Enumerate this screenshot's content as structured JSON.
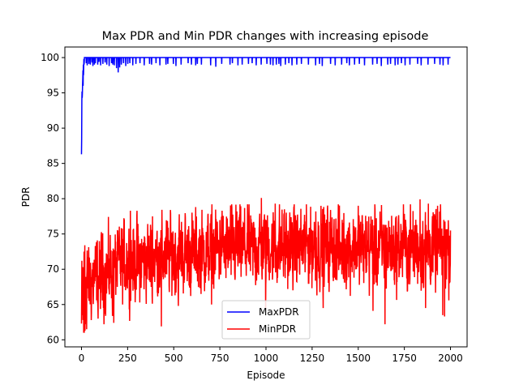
{
  "chart_data": {
    "type": "line",
    "title": "Max PDR and Min PDR changes with increasing episode",
    "xlabel": "Episode",
    "ylabel": "PDR",
    "xlim": [
      -90,
      2090
    ],
    "ylim": [
      59.0,
      101.5
    ],
    "xticks": [
      0,
      250,
      500,
      750,
      1000,
      1250,
      1500,
      1750,
      2000
    ],
    "yticks": [
      60,
      65,
      70,
      75,
      80,
      85,
      90,
      95,
      100
    ],
    "legend_position": "lower center",
    "n_episodes": 2000,
    "series": [
      {
        "name": "MaxPDR",
        "color": "#0000ff",
        "description": "Starts near 86 at episode 0, rises to ~99 within the first 20 episodes, then stays at 100 with frequent brief dips to 98-99 (deepest ~97.9 near episode 200).",
        "start_values": [
          86.3,
          88.5,
          94.0,
          95.2,
          94.3,
          95.0,
          96.2,
          97.0,
          98.2,
          96.0,
          99.0,
          97.5,
          98.5,
          99.8,
          99.0,
          99.4,
          100.0
        ],
        "baseline": 100.0,
        "dips": [
          [
            26,
            99.2
          ],
          [
            31,
            98.9
          ],
          [
            40,
            99.1
          ],
          [
            48,
            99.0
          ],
          [
            57,
            99.3
          ],
          [
            62,
            98.8
          ],
          [
            70,
            99.0
          ],
          [
            75,
            99.2
          ],
          [
            88,
            99.0
          ],
          [
            95,
            99.4
          ],
          [
            104,
            98.9
          ],
          [
            116,
            99.1
          ],
          [
            128,
            99.3
          ],
          [
            137,
            99.0
          ],
          [
            150,
            98.8
          ],
          [
            163,
            99.2
          ],
          [
            170,
            99.0
          ],
          [
            178,
            98.9
          ],
          [
            190,
            98.5
          ],
          [
            199,
            97.9
          ],
          [
            207,
            98.6
          ],
          [
            216,
            99.0
          ],
          [
            228,
            99.2
          ],
          [
            240,
            98.8
          ],
          [
            251,
            99.1
          ],
          [
            262,
            99.2
          ],
          [
            278,
            98.9
          ],
          [
            295,
            99.1
          ],
          [
            317,
            99.2
          ],
          [
            340,
            98.9
          ],
          [
            369,
            99.1
          ],
          [
            380,
            99.0
          ],
          [
            404,
            99.2
          ],
          [
            425,
            98.9
          ],
          [
            458,
            99.0
          ],
          [
            468,
            99.1
          ],
          [
            498,
            99.1
          ],
          [
            512,
            98.8
          ],
          [
            540,
            99.0
          ],
          [
            578,
            99.2
          ],
          [
            596,
            99.0
          ],
          [
            619,
            98.9
          ],
          [
            628,
            99.1
          ],
          [
            650,
            99.0
          ],
          [
            700,
            98.9
          ],
          [
            728,
            98.7
          ],
          [
            760,
            99.1
          ],
          [
            805,
            99.0
          ],
          [
            818,
            99.2
          ],
          [
            848,
            98.9
          ],
          [
            871,
            99.0
          ],
          [
            905,
            99.1
          ],
          [
            925,
            99.2
          ],
          [
            947,
            98.9
          ],
          [
            974,
            99.0
          ],
          [
            1005,
            99.1
          ],
          [
            1024,
            99.0
          ],
          [
            1038,
            98.9
          ],
          [
            1056,
            99.0
          ],
          [
            1070,
            99.1
          ],
          [
            1080,
            98.8
          ],
          [
            1105,
            99.0
          ],
          [
            1124,
            99.2
          ],
          [
            1141,
            98.9
          ],
          [
            1167,
            99.0
          ],
          [
            1192,
            99.1
          ],
          [
            1230,
            99.0
          ],
          [
            1269,
            98.9
          ],
          [
            1290,
            99.1
          ],
          [
            1305,
            98.8
          ],
          [
            1350,
            99.1
          ],
          [
            1375,
            98.9
          ],
          [
            1410,
            99.0
          ],
          [
            1438,
            99.2
          ],
          [
            1452,
            98.9
          ],
          [
            1480,
            99.0
          ],
          [
            1506,
            99.1
          ],
          [
            1534,
            98.9
          ],
          [
            1578,
            99.0
          ],
          [
            1602,
            99.1
          ],
          [
            1625,
            98.8
          ],
          [
            1660,
            99.0
          ],
          [
            1675,
            99.1
          ],
          [
            1700,
            98.9
          ],
          [
            1715,
            99.0
          ],
          [
            1734,
            99.2
          ],
          [
            1754,
            98.9
          ],
          [
            1780,
            99.0
          ],
          [
            1822,
            99.1
          ],
          [
            1841,
            98.9
          ],
          [
            1878,
            99.0
          ],
          [
            1914,
            99.1
          ],
          [
            1943,
            99.0
          ],
          [
            1960,
            98.9
          ],
          [
            1987,
            99.0
          ]
        ]
      },
      {
        "name": "MinPDR",
        "color": "#ff0000",
        "description": "Noisy series starting around 62-71 in the first episodes, then fluctuating roughly between 62 and 80 across all 2000 episodes; local mean rises from ~69 (early) to ~73 (later).",
        "start_values": [
          62.3,
          66.0,
          71.2,
          64.5,
          63.5,
          68.0,
          65.1,
          70.3,
          62.8,
          67.5,
          64.0,
          69.5,
          61.0,
          66.8,
          72.5,
          63.7,
          70.1,
          65.3,
          73.4,
          61.3
        ],
        "trend": [
          [
            0,
            67.5
          ],
          [
            100,
            69.0
          ],
          [
            250,
            71.0
          ],
          [
            500,
            72.0
          ],
          [
            750,
            72.8
          ],
          [
            1000,
            73.2
          ],
          [
            1500,
            73.0
          ],
          [
            2000,
            73.0
          ]
        ],
        "band_min": 61.0,
        "band_max": 80.2,
        "extremes": [
          [
            15,
            61.0
          ],
          [
            28,
            61.5
          ],
          [
            90,
            63.0
          ],
          [
            175,
            62.4
          ],
          [
            265,
            78.3
          ],
          [
            385,
            77.5
          ],
          [
            433,
            61.9
          ],
          [
            525,
            64.8
          ],
          [
            705,
            65.0
          ],
          [
            762,
            78.3
          ],
          [
            842,
            78.2
          ],
          [
            975,
            80.1
          ],
          [
            998,
            64.3
          ],
          [
            1050,
            79.3
          ],
          [
            1100,
            78.5
          ],
          [
            1270,
            78.2
          ],
          [
            1310,
            64.5
          ],
          [
            1500,
            79.0
          ],
          [
            1580,
            64.1
          ],
          [
            1645,
            62.2
          ],
          [
            1745,
            79.2
          ],
          [
            1835,
            79.9
          ],
          [
            1865,
            64.5
          ],
          [
            1880,
            79.3
          ],
          [
            1930,
            79.0
          ],
          [
            1958,
            63.5
          ],
          [
            1968,
            63.3
          ],
          [
            1990,
            70.0
          ],
          [
            2000,
            75.5
          ]
        ]
      }
    ]
  }
}
